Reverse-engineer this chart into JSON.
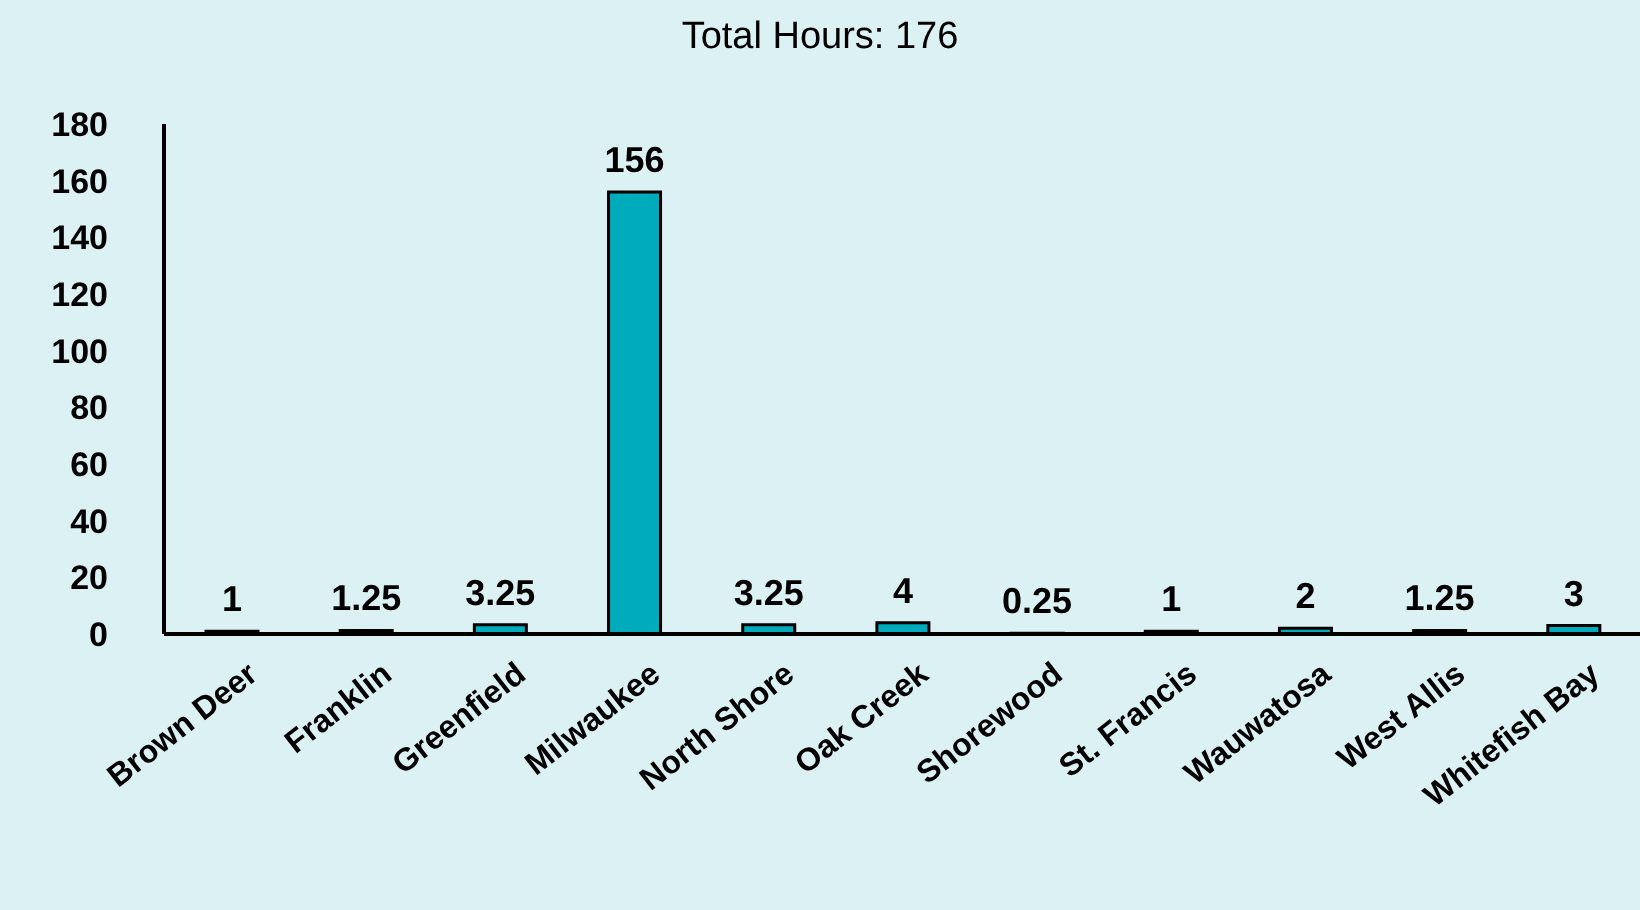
{
  "chart_data": {
    "type": "bar",
    "title": "Total Hours: 176",
    "categories": [
      "Brown Deer",
      "Franklin",
      "Greenfield",
      "Milwaukee",
      "North Shore",
      "Oak Creek",
      "Shorewood",
      "St. Francis",
      "Wauwatosa",
      "West Allis",
      "Whitefish Bay"
    ],
    "values": [
      1,
      1.25,
      3.25,
      156,
      3.25,
      4,
      0.25,
      1,
      2,
      1.25,
      3
    ],
    "color": "#00abbb",
    "ylim": [
      0,
      180
    ],
    "yticks": [
      0,
      20,
      40,
      60,
      80,
      100,
      120,
      140,
      160,
      180
    ],
    "data_labels": true
  }
}
